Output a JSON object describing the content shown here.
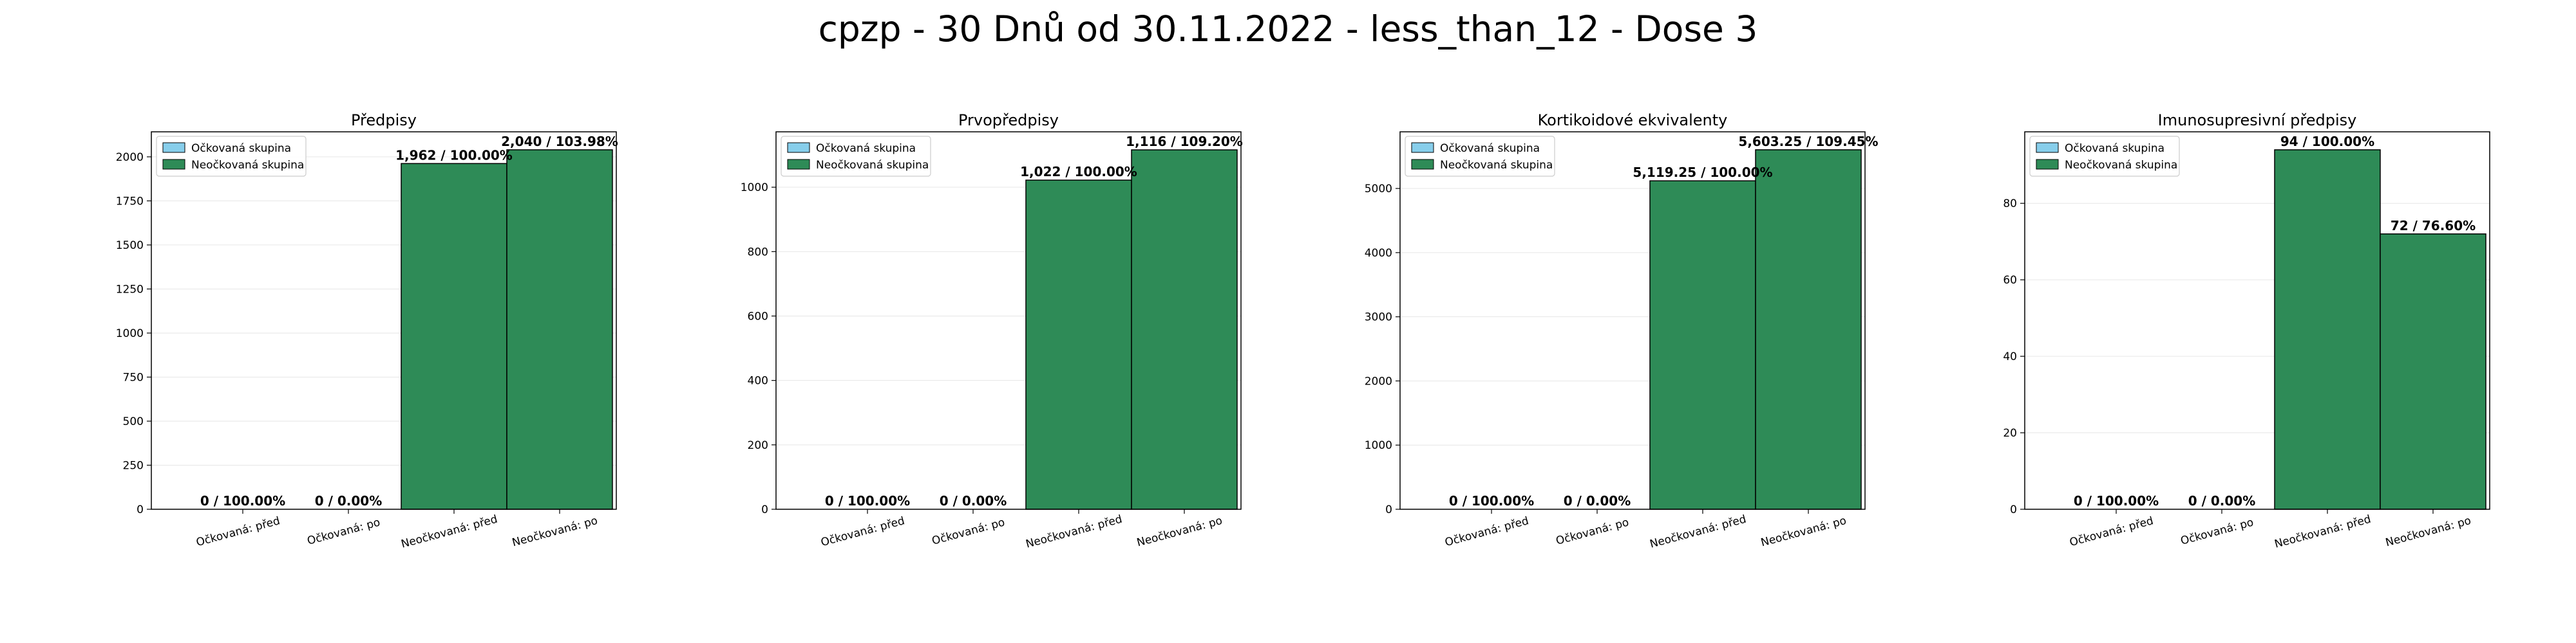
{
  "suptitle": "cpzp - 30 Dnů od 30.11.2022 - less_than_12 - Dose 3",
  "colors": {
    "vaccinated": "#87ceeb",
    "unvaccinated": "#2e8b57",
    "edge": "#000000",
    "grid": "#e6e6e6"
  },
  "chart_data": [
    {
      "type": "bar",
      "title": "Předpisy",
      "categories": [
        "Očkovaná: před",
        "Očkovaná: po",
        "Neočkovaná: před",
        "Neočkovaná: po"
      ],
      "values": [
        0,
        0,
        1962,
        2040
      ],
      "groups": [
        "Očkovaná skupina",
        "Očkovaná skupina",
        "Neočkovaná skupina",
        "Neočkovaná skupina"
      ],
      "data_labels": [
        "0 / 100.00%",
        "0 / 0.00%",
        "1,962 / 100.00%",
        "2,040 / 103.98%"
      ],
      "ylim": [
        0,
        2142
      ],
      "yticks": [
        0,
        250,
        500,
        750,
        1000,
        1250,
        1500,
        1750,
        2000
      ],
      "legend": [
        "Očkovaná skupina",
        "Neočkovaná skupina"
      ],
      "legend_position": "top-left",
      "grid": "y"
    },
    {
      "type": "bar",
      "title": "Prvopředpisy",
      "categories": [
        "Očkovaná: před",
        "Očkovaná: po",
        "Neočkovaná: před",
        "Neočkovaná: po"
      ],
      "values": [
        0,
        0,
        1022,
        1116
      ],
      "groups": [
        "Očkovaná skupina",
        "Očkovaná skupina",
        "Neočkovaná skupina",
        "Neočkovaná skupina"
      ],
      "data_labels": [
        "0 / 100.00%",
        "0 / 0.00%",
        "1,022 / 100.00%",
        "1,116 / 109.20%"
      ],
      "ylim": [
        0,
        1172
      ],
      "yticks": [
        0,
        200,
        400,
        600,
        800,
        1000
      ],
      "legend": [
        "Očkovaná skupina",
        "Neočkovaná skupina"
      ],
      "legend_position": "top-left",
      "grid": "y"
    },
    {
      "type": "bar",
      "title": "Kortikoidové ekvivalenty",
      "categories": [
        "Očkovaná: před",
        "Očkovaná: po",
        "Neočkovaná: před",
        "Neočkovaná: po"
      ],
      "values": [
        0,
        0,
        5119.25,
        5603.25
      ],
      "groups": [
        "Očkovaná skupina",
        "Očkovaná skupina",
        "Neočkovaná skupina",
        "Neočkovaná skupina"
      ],
      "data_labels": [
        "0 / 100.00%",
        "0 / 0.00%",
        "5,119.25 / 100.00%",
        "5,603.25 / 109.45%"
      ],
      "ylim": [
        0,
        5883
      ],
      "yticks": [
        0,
        1000,
        2000,
        3000,
        4000,
        5000
      ],
      "legend": [
        "Očkovaná skupina",
        "Neočkovaná skupina"
      ],
      "legend_position": "top-left",
      "grid": "y"
    },
    {
      "type": "bar",
      "title": "Imunosupresivní předpisy",
      "categories": [
        "Očkovaná: před",
        "Očkovaná: po",
        "Neočkovaná: před",
        "Neočkovaná: po"
      ],
      "values": [
        0,
        0,
        94,
        72
      ],
      "groups": [
        "Očkovaná skupina",
        "Očkovaná skupina",
        "Neočkovaná skupina",
        "Neočkovaná skupina"
      ],
      "data_labels": [
        "0 / 100.00%",
        "0 / 0.00%",
        "94 / 100.00%",
        "72 / 76.60%"
      ],
      "ylim": [
        0,
        98.7
      ],
      "yticks": [
        0,
        20,
        40,
        60,
        80
      ],
      "legend": [
        "Očkovaná skupina",
        "Neočkovaná skupina"
      ],
      "legend_position": "top-left",
      "grid": "y"
    }
  ]
}
